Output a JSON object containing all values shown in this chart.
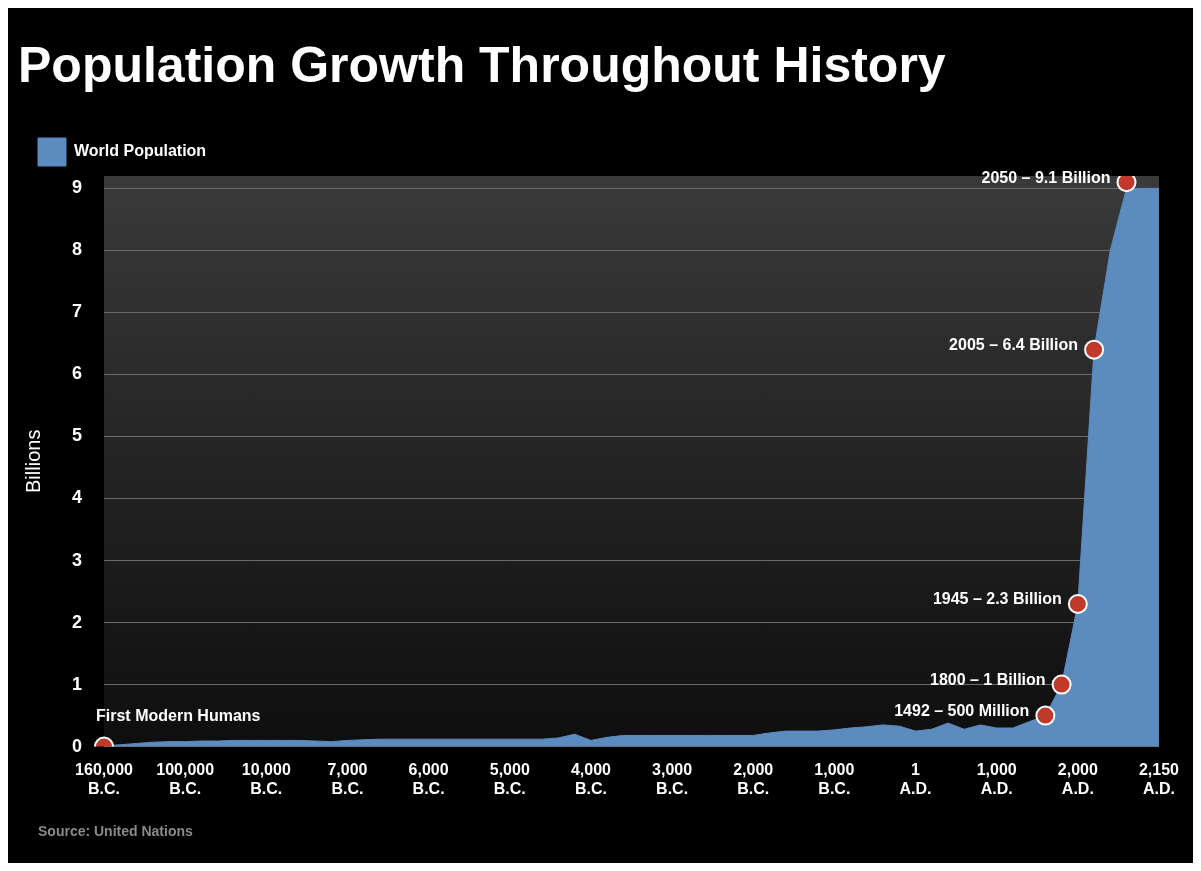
{
  "chart_data": {
    "type": "area",
    "title": "Population Growth Throughout History",
    "ylabel": "Billions",
    "categories": [
      "160,000 B.C.",
      null,
      null,
      null,
      null,
      "100,000 B.C.",
      null,
      null,
      null,
      null,
      "10,000 B.C.",
      null,
      null,
      null,
      null,
      "7,000 B.C.",
      null,
      null,
      null,
      null,
      "6,000 B.C.",
      null,
      null,
      null,
      null,
      "5,000 B.C.",
      null,
      null,
      null,
      null,
      "4,000 B.C.",
      null,
      null,
      null,
      null,
      "3,000 B.C.",
      null,
      null,
      null,
      null,
      "2,000 B.C.",
      null,
      null,
      null,
      null,
      "1,000 B.C.",
      null,
      null,
      null,
      null,
      "1 A.D.",
      null,
      null,
      null,
      null,
      "1,000 A.D.",
      null,
      null,
      null,
      null,
      "2,000 A.D.",
      null,
      null,
      null,
      null,
      "2,150 A.D."
    ],
    "series": [
      {
        "name": "World Population",
        "color": "#5b8bbf",
        "values": [
          0.01,
          0.03,
          0.05,
          0.07,
          0.08,
          0.08,
          0.09,
          0.09,
          0.1,
          0.1,
          0.1,
          0.1,
          0.1,
          0.09,
          0.08,
          0.1,
          0.11,
          0.12,
          0.12,
          0.12,
          0.12,
          0.12,
          0.12,
          0.12,
          0.12,
          0.12,
          0.12,
          0.12,
          0.14,
          0.2,
          0.1,
          0.15,
          0.18,
          0.18,
          0.18,
          0.18,
          0.18,
          0.18,
          0.18,
          0.18,
          0.18,
          0.22,
          0.25,
          0.25,
          0.25,
          0.27,
          0.3,
          0.32,
          0.35,
          0.33,
          0.25,
          0.28,
          0.38,
          0.28,
          0.35,
          0.3,
          0.3,
          0.4,
          0.5,
          1,
          2.3,
          6.4,
          8,
          9,
          9,
          9
        ]
      },
      {
        "type": "scatter",
        "color": "#c0392b",
        "marker": "circle",
        "values": [
          0,
          null,
          null,
          null,
          null,
          null,
          null,
          null,
          null,
          null,
          null,
          null,
          null,
          null,
          null,
          null,
          null,
          null,
          null,
          null,
          null,
          null,
          null,
          null,
          null,
          null,
          null,
          null,
          null,
          null,
          null,
          null,
          null,
          null,
          null,
          null,
          null,
          null,
          null,
          null,
          null,
          null,
          null,
          null,
          null,
          null,
          null,
          null,
          null,
          null,
          null,
          null,
          null,
          null,
          null,
          null,
          null,
          null,
          0.5,
          1,
          2.3,
          6.4,
          null,
          9.1,
          null,
          null
        ]
      }
    ],
    "ylim": [
      0,
      9.2
    ],
    "yticks": [
      0,
      1,
      2,
      3,
      4,
      5,
      6,
      7,
      8,
      9
    ],
    "grid": "y",
    "legend": "top left",
    "annotations": [
      "First Modern Humans",
      "1492 – 500 Million",
      "1800 – 1 Billion",
      "1945 – 2.3 Billion",
      "2005 – 6.4 Billion",
      "2050 – 9.1 Billion",
      "Source: United Nations"
    ]
  }
}
